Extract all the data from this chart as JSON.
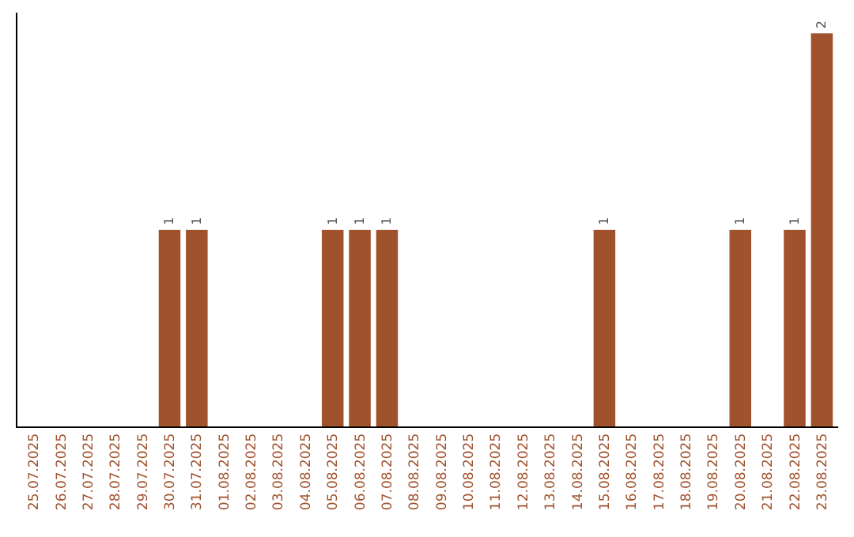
{
  "chart_data": {
    "type": "bar",
    "categories": [
      "25.07.2025",
      "26.07.2025",
      "27.07.2025",
      "28.07.2025",
      "29.07.2025",
      "30.07.2025",
      "31.07.2025",
      "01.08.2025",
      "02.08.2025",
      "03.08.2025",
      "04.08.2025",
      "05.08.2025",
      "06.08.2025",
      "07.08.2025",
      "08.08.2025",
      "09.08.2025",
      "10.08.2025",
      "11.08.2025",
      "12.08.2025",
      "13.08.2025",
      "14.08.2025",
      "15.08.2025",
      "16.08.2025",
      "17.08.2025",
      "18.08.2025",
      "19.08.2025",
      "20.08.2025",
      "21.08.2025",
      "22.08.2025",
      "23.08.2025"
    ],
    "values": [
      0,
      0,
      0,
      0,
      0,
      1,
      1,
      0,
      0,
      0,
      0,
      1,
      1,
      1,
      0,
      0,
      0,
      0,
      0,
      0,
      0,
      1,
      0,
      0,
      0,
      0,
      1,
      0,
      1,
      2
    ],
    "color": "#a0522d",
    "value_labels": [
      null,
      null,
      null,
      null,
      null,
      "1",
      "1",
      null,
      null,
      null,
      null,
      "1",
      "1",
      "1",
      null,
      null,
      null,
      null,
      null,
      null,
      null,
      "1",
      null,
      null,
      null,
      null,
      "1",
      null,
      "1",
      "2"
    ],
    "grid": false,
    "legend": false,
    "tick_labels": "x"
  }
}
